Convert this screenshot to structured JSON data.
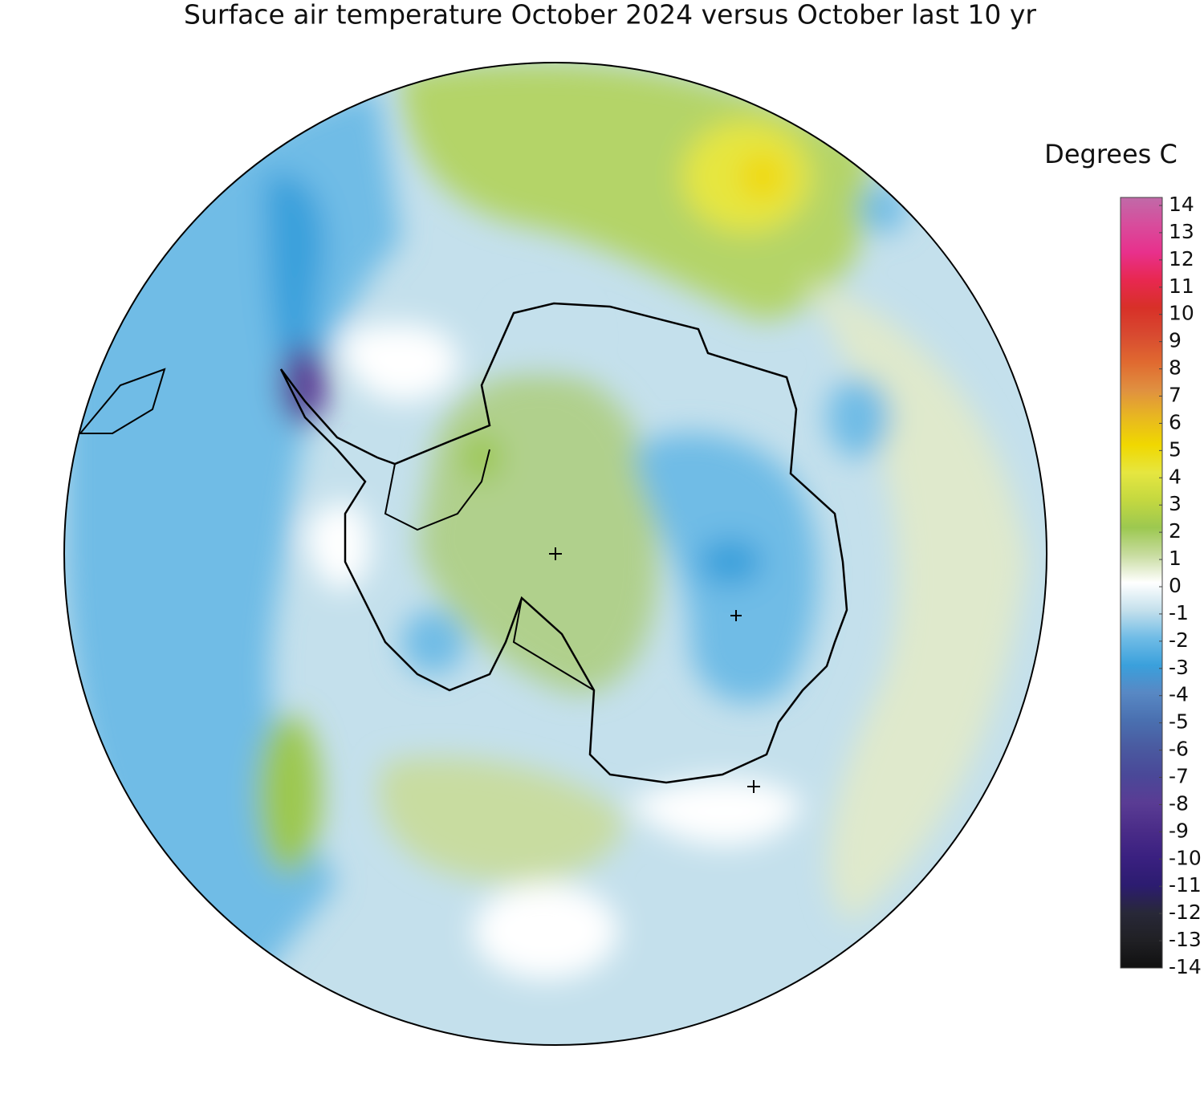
{
  "title": "Surface air temperature October 2024 versus October last 10 yr",
  "colorbar": {
    "label": "Degrees C",
    "lim": [
      -14,
      14
    ],
    "ticks": [
      14,
      13,
      12,
      11,
      10,
      9,
      8,
      7,
      6,
      5,
      4,
      3,
      2,
      1,
      0,
      -1,
      -2,
      -3,
      -4,
      -5,
      -6,
      -7,
      -8,
      -9,
      -10,
      -11,
      -12,
      -13,
      -14
    ],
    "colors": [
      "#c06aa8",
      "#d84c9c",
      "#e8308c",
      "#e82850",
      "#d83028",
      "#d84a30",
      "#e06a30",
      "#e09040",
      "#e8b820",
      "#f0d800",
      "#e6e640",
      "#c4d840",
      "#9cc850",
      "#c8dca0",
      "#ffffff",
      "#c4e0ec",
      "#70bce6",
      "#3aa0dc",
      "#5888c4",
      "#4a70b0",
      "#4a5aa0",
      "#4a4898",
      "#5a3c94",
      "#4a2c88",
      "#3a2080",
      "#2c1c70",
      "#282838",
      "#202024",
      "#101010"
    ]
  }
}
